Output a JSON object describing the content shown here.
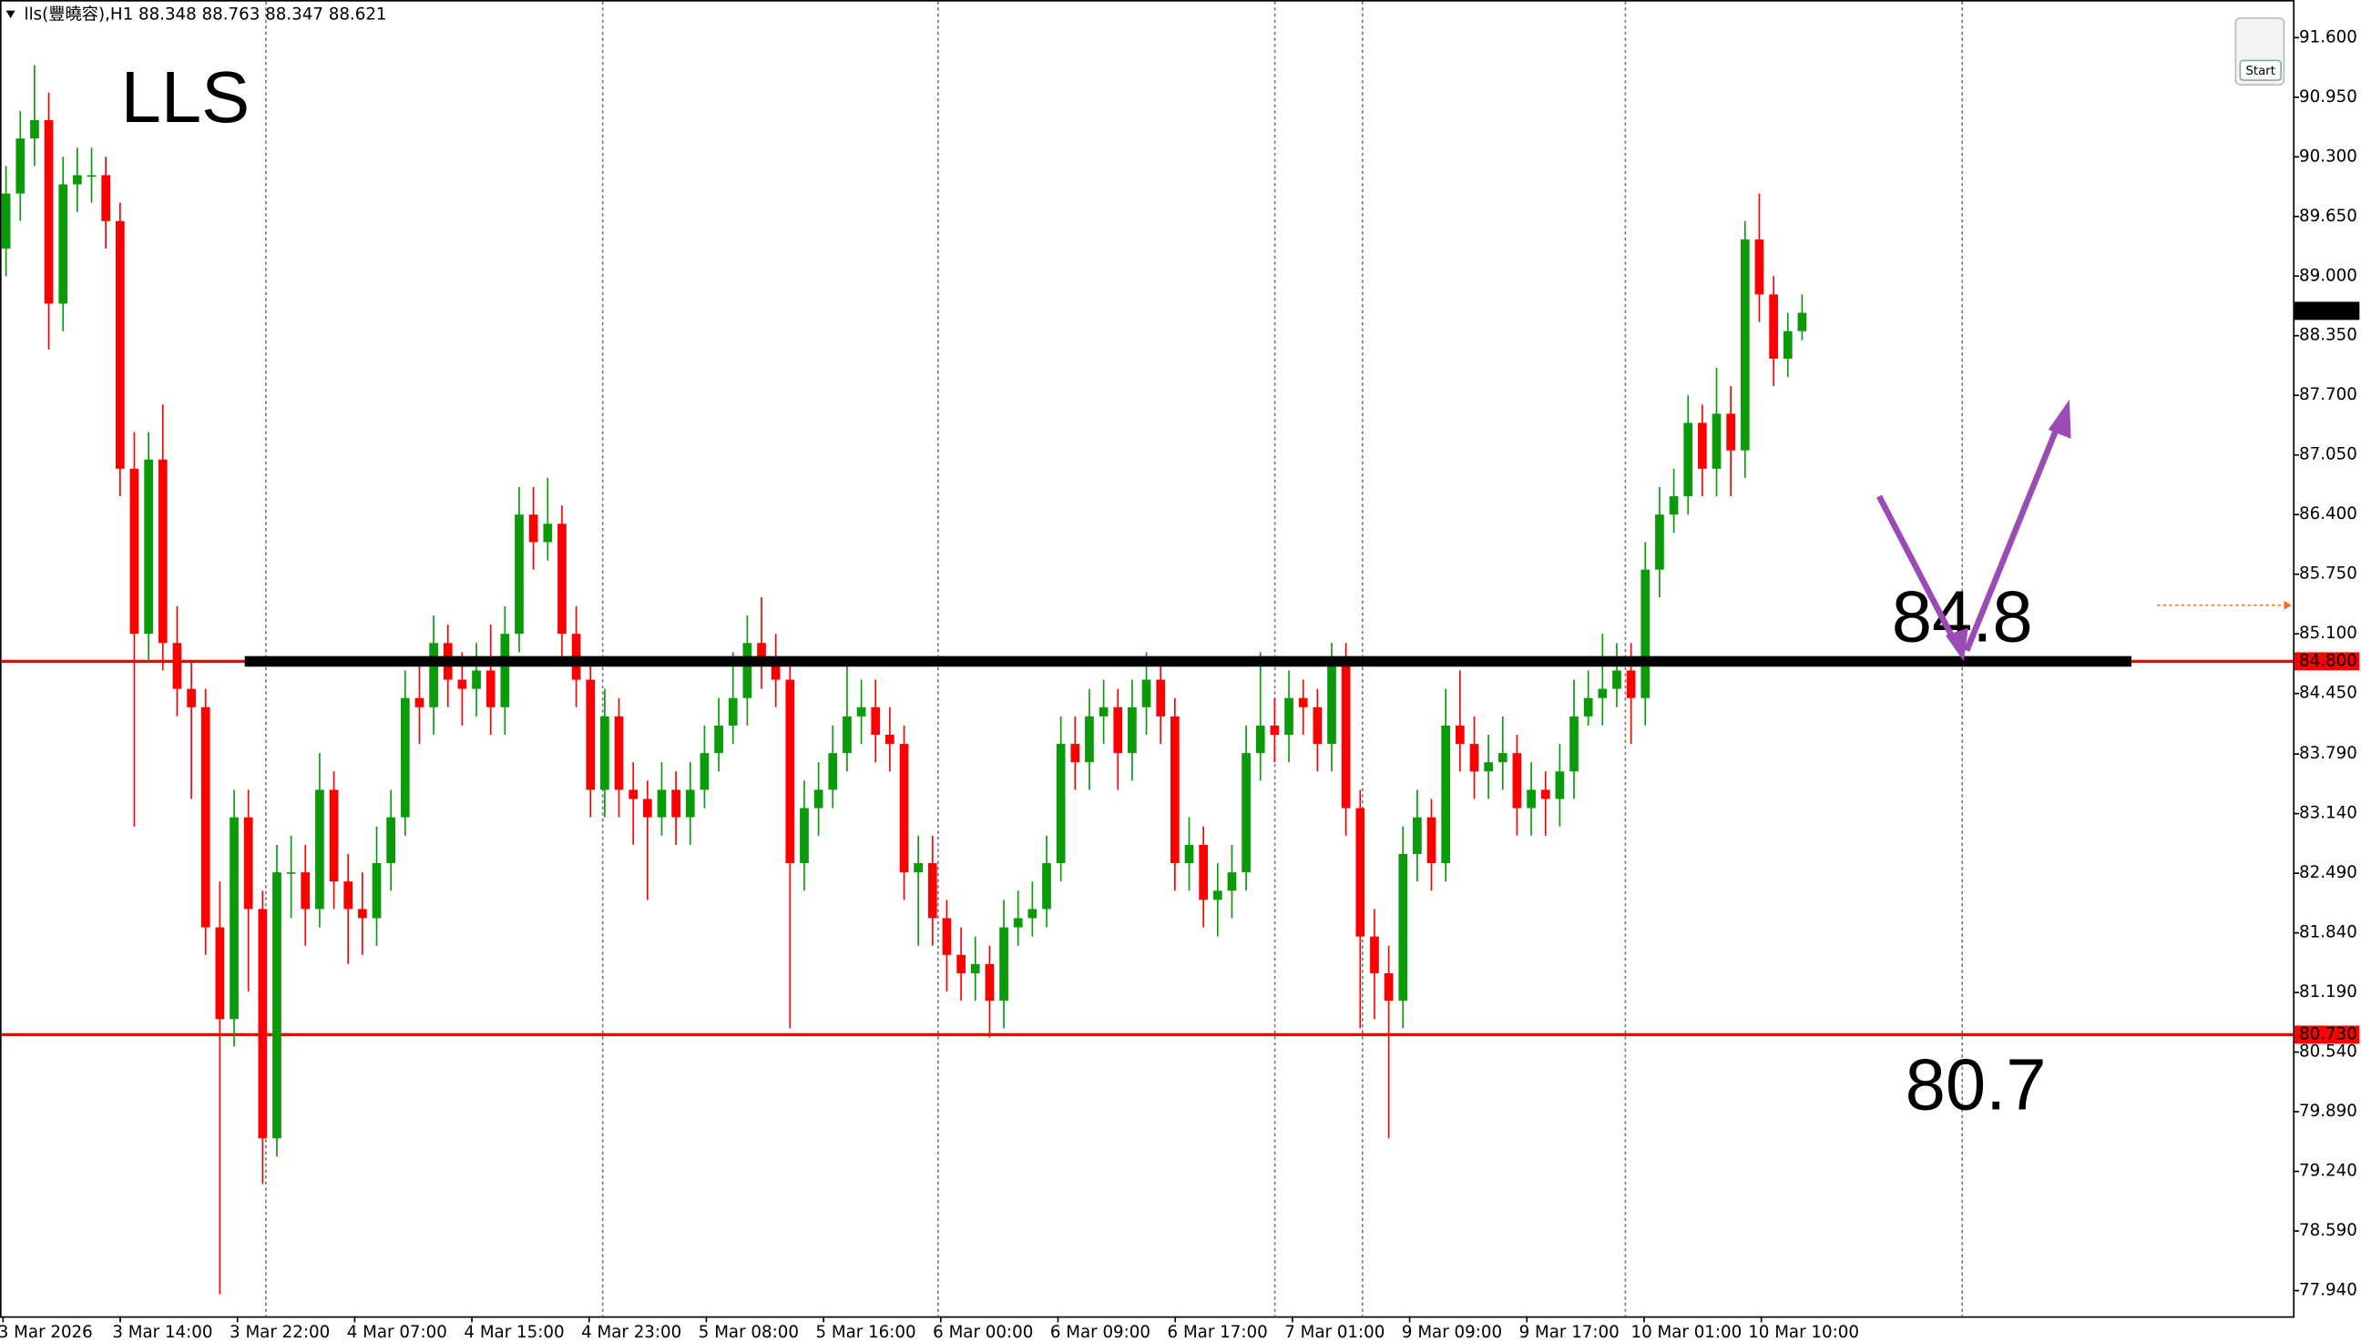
{
  "chart_data": {
    "type": "candlestick",
    "header": "lls(豐曉容),H1  88.348 88.763 88.347 88.621",
    "title": "LLS",
    "up_color": "#0a9a0a",
    "down_color": "#ff0000",
    "ylim": [
      77.66,
      92.01
    ],
    "yticks": [
      {
        "value": 91.6,
        "label": "91.600"
      },
      {
        "value": 90.95,
        "label": "90.950"
      },
      {
        "value": 90.3,
        "label": "90.300"
      },
      {
        "value": 89.65,
        "label": "89.650"
      },
      {
        "value": 89.0,
        "label": "89.000"
      },
      {
        "value": 88.35,
        "label": "88.350"
      },
      {
        "value": 87.7,
        "label": "87.700"
      },
      {
        "value": 87.05,
        "label": "87.050"
      },
      {
        "value": 86.4,
        "label": "86.400"
      },
      {
        "value": 85.75,
        "label": "85.750"
      },
      {
        "value": 85.1,
        "label": "85.100"
      },
      {
        "value": 84.45,
        "label": "84.450"
      },
      {
        "value": 83.79,
        "label": "83.790"
      },
      {
        "value": 83.14,
        "label": "83.140"
      },
      {
        "value": 82.49,
        "label": "82.490"
      },
      {
        "value": 81.84,
        "label": "81.840"
      },
      {
        "value": 81.19,
        "label": "81.190"
      },
      {
        "value": 80.54,
        "label": "80.540"
      },
      {
        "value": 79.89,
        "label": "79.890"
      },
      {
        "value": 79.24,
        "label": "79.240"
      },
      {
        "value": 78.59,
        "label": "78.590"
      },
      {
        "value": 77.94,
        "label": "77.940"
      }
    ],
    "xtick_labels": [
      "3 Mar 2026",
      "3 Mar 14:00",
      "3 Mar 22:00",
      "4 Mar 07:00",
      "4 Mar 15:00",
      "4 Mar 23:00",
      "5 Mar 08:00",
      "5 Mar 16:00",
      "6 Mar 00:00",
      "6 Mar 09:00",
      "6 Mar 17:00",
      "7 Mar 01:00",
      "9 Mar 09:00",
      "9 Mar 17:00",
      "10 Mar 01:00",
      "10 Mar 10:00"
    ],
    "open": [
      89.3,
      89.9,
      90.5,
      90.7,
      88.7,
      90.0,
      90.1,
      90.1,
      89.6,
      86.9,
      85.1,
      87.0,
      85.0,
      84.5,
      84.3,
      81.9,
      80.9,
      83.1,
      82.1,
      79.6,
      82.5,
      82.5,
      82.1,
      83.4,
      82.4,
      82.1,
      82.0,
      82.6,
      83.1,
      84.4,
      84.3,
      85.0,
      84.6,
      84.5,
      84.7,
      84.3,
      85.1,
      86.4,
      86.1,
      86.3,
      85.1,
      84.6,
      83.4,
      84.2,
      83.4,
      83.3,
      83.1,
      83.4,
      83.1,
      83.4,
      83.8,
      84.1,
      84.4,
      85.0,
      84.8,
      84.6,
      82.6,
      83.2,
      83.4,
      83.8,
      84.2,
      84.3,
      84.0,
      83.9,
      82.5,
      82.6,
      82.0,
      81.6,
      81.4,
      81.5,
      81.1,
      81.9,
      82.0,
      82.1,
      82.6,
      83.9,
      83.7,
      84.2,
      84.3,
      83.8,
      84.3,
      84.6,
      84.2,
      82.6,
      82.8,
      82.2,
      82.3,
      82.5,
      83.8,
      84.1,
      84.0,
      84.4,
      84.3,
      83.9,
      84.8,
      83.2,
      81.8,
      81.4,
      81.1,
      82.7,
      83.1,
      82.6,
      84.1,
      83.9,
      83.6,
      83.7,
      83.8,
      83.2,
      83.4,
      83.3,
      83.6,
      84.2,
      84.4,
      84.5,
      84.7,
      84.4,
      85.8,
      86.4,
      86.6,
      87.4,
      86.9,
      87.5,
      87.1,
      89.4,
      88.8,
      88.1,
      88.4
    ],
    "high": [
      90.2,
      90.8,
      91.3,
      91.0,
      90.3,
      90.4,
      90.4,
      90.3,
      89.8,
      87.3,
      87.3,
      87.6,
      85.4,
      84.8,
      84.5,
      82.4,
      83.4,
      83.4,
      82.3,
      82.8,
      82.9,
      82.8,
      83.8,
      83.6,
      82.7,
      82.5,
      83.0,
      83.4,
      84.7,
      84.8,
      85.3,
      85.2,
      84.9,
      85.0,
      85.2,
      85.4,
      86.7,
      86.7,
      86.8,
      86.5,
      85.4,
      84.8,
      84.5,
      84.4,
      83.7,
      83.5,
      83.7,
      83.6,
      83.7,
      84.1,
      84.4,
      84.9,
      85.3,
      85.5,
      85.1,
      84.8,
      83.5,
      83.7,
      84.1,
      84.8,
      84.6,
      84.6,
      84.3,
      84.1,
      82.9,
      82.9,
      82.2,
      81.9,
      81.8,
      81.7,
      82.2,
      82.3,
      82.4,
      82.9,
      84.2,
      84.2,
      84.5,
      84.6,
      84.5,
      84.6,
      84.9,
      84.8,
      84.4,
      83.1,
      83.0,
      82.6,
      82.8,
      84.1,
      84.9,
      84.4,
      84.7,
      84.6,
      84.5,
      85.0,
      85.0,
      83.4,
      82.1,
      81.7,
      83.0,
      83.4,
      83.3,
      84.5,
      84.7,
      84.2,
      84.0,
      84.2,
      84.0,
      83.7,
      83.6,
      83.9,
      84.6,
      84.7,
      85.1,
      85.0,
      85.0,
      86.1,
      86.7,
      86.9,
      87.7,
      87.6,
      88.0,
      87.8,
      89.6,
      89.9,
      89.0,
      88.6,
      88.8
    ],
    "low": [
      89.0,
      89.6,
      90.2,
      88.2,
      88.4,
      89.7,
      89.8,
      89.3,
      86.6,
      83.0,
      84.8,
      84.7,
      84.2,
      83.3,
      81.6,
      77.9,
      80.6,
      81.2,
      79.1,
      79.4,
      82.0,
      81.7,
      81.9,
      82.1,
      81.5,
      81.6,
      81.7,
      82.3,
      82.9,
      83.9,
      84.0,
      84.3,
      84.1,
      84.2,
      84.0,
      84.0,
      84.9,
      85.8,
      85.9,
      84.8,
      84.3,
      83.1,
      83.1,
      83.1,
      82.8,
      82.2,
      82.9,
      82.8,
      82.8,
      83.2,
      83.6,
      83.9,
      84.1,
      84.5,
      84.3,
      80.8,
      82.3,
      82.9,
      83.2,
      83.6,
      83.9,
      83.7,
      83.6,
      82.2,
      81.7,
      81.7,
      81.2,
      81.1,
      81.1,
      80.7,
      80.8,
      81.7,
      81.8,
      81.9,
      82.4,
      83.4,
      83.4,
      83.9,
      83.4,
      83.5,
      84.0,
      83.9,
      82.3,
      82.3,
      81.9,
      81.8,
      82.0,
      82.3,
      83.5,
      83.7,
      83.7,
      84.0,
      83.6,
      83.6,
      82.9,
      80.8,
      80.9,
      79.6,
      80.8,
      82.4,
      82.3,
      82.4,
      83.6,
      83.3,
      83.3,
      83.4,
      82.9,
      82.9,
      82.9,
      83.0,
      83.3,
      84.1,
      84.1,
      84.3,
      83.9,
      84.1,
      85.5,
      86.2,
      86.4,
      86.6,
      86.6,
      86.6,
      86.8,
      88.5,
      87.8,
      87.9,
      88.3
    ],
    "close": [
      89.9,
      90.5,
      90.7,
      88.7,
      90.0,
      90.1,
      90.1,
      89.6,
      86.9,
      85.1,
      87.0,
      85.0,
      84.5,
      84.3,
      81.9,
      80.9,
      83.1,
      82.1,
      79.6,
      82.5,
      82.5,
      82.1,
      83.4,
      82.4,
      82.1,
      82.0,
      82.6,
      83.1,
      84.4,
      84.3,
      85.0,
      84.6,
      84.5,
      84.7,
      84.3,
      85.1,
      86.4,
      86.1,
      86.3,
      85.1,
      84.6,
      83.4,
      84.2,
      83.4,
      83.3,
      83.1,
      83.4,
      83.1,
      83.4,
      83.8,
      84.1,
      84.4,
      85.0,
      84.8,
      84.6,
      82.6,
      83.2,
      83.4,
      83.8,
      84.2,
      84.3,
      84.0,
      83.9,
      82.5,
      82.6,
      82.0,
      81.6,
      81.4,
      81.5,
      81.1,
      81.9,
      82.0,
      82.1,
      82.6,
      83.9,
      83.7,
      84.2,
      84.3,
      83.8,
      84.3,
      84.6,
      84.2,
      82.6,
      82.8,
      82.2,
      82.3,
      82.5,
      83.8,
      84.1,
      84.0,
      84.4,
      84.3,
      83.9,
      84.8,
      83.2,
      81.8,
      81.4,
      81.1,
      82.7,
      83.1,
      82.6,
      84.1,
      83.9,
      83.6,
      83.7,
      83.8,
      83.2,
      83.4,
      83.3,
      83.6,
      84.2,
      84.4,
      84.5,
      84.7,
      84.4,
      85.8,
      86.4,
      86.6,
      87.4,
      86.9,
      87.5,
      87.1,
      89.4,
      88.8,
      88.1,
      88.4,
      88.6
    ],
    "last_price": 88.621,
    "levels": [
      {
        "value": 84.8,
        "label": "84.800",
        "color": "#ff0000"
      },
      {
        "value": 80.73,
        "label": "80.730",
        "color": "#ff0000"
      }
    ],
    "annotations": [
      {
        "text": "84.8",
        "value": 84.8
      },
      {
        "text": "80.7",
        "value": 80.7
      }
    ],
    "button": "Start"
  }
}
